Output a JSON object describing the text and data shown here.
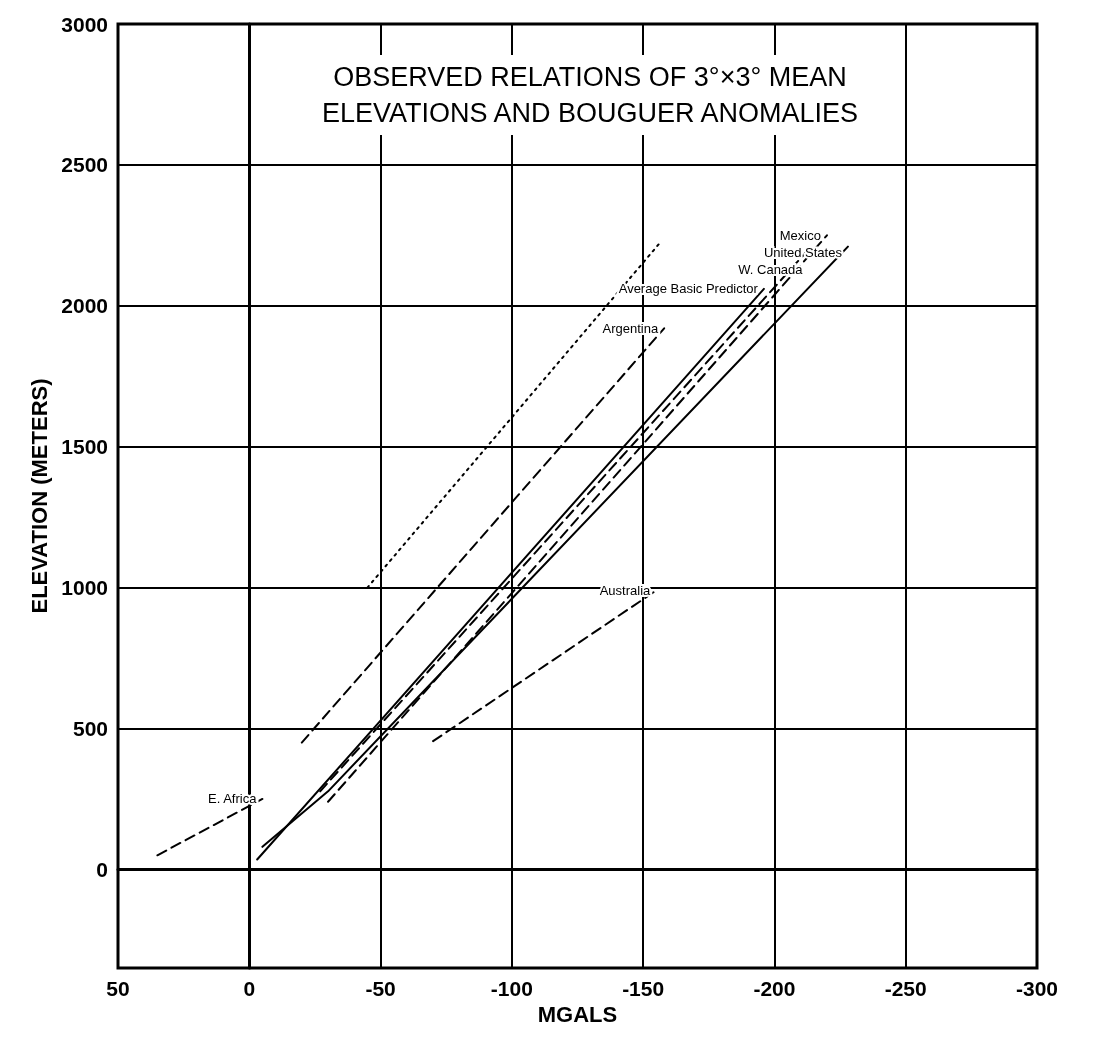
{
  "chart_data": {
    "type": "line",
    "title": "OBSERVED RELATIONS OF 3°×3° MEAN ELEVATIONS AND BOUGUER ANOMALIES",
    "xlabel": "MGALS",
    "ylabel": "ELEVATION (METERS)",
    "xlim": [
      50,
      -300
    ],
    "xticks": [
      50,
      0,
      -50,
      -100,
      -150,
      -200,
      -250,
      -300
    ],
    "ylim": [
      -350,
      3000
    ],
    "yticks": [
      0,
      500,
      1000,
      1500,
      2000,
      2500,
      3000
    ],
    "grid": true,
    "legend": false,
    "marker": "none",
    "series": [
      {
        "name": "Average Basic Predictor",
        "color": "#000000",
        "line_style": "solid",
        "x": [
          -3,
          -196
        ],
        "values": [
          35,
          2060
        ]
      },
      {
        "name": "W. Canada",
        "color": "#000000",
        "line_style": "dashed",
        "x": [
          -27,
          -213
        ],
        "values": [
          277,
          2200
        ]
      },
      {
        "name": "Mexico",
        "color": "#000000",
        "line_style": "dashed",
        "x": [
          -30,
          -220
        ],
        "values": [
          240,
          2250
        ]
      },
      {
        "name": "United States",
        "color": "#000000",
        "line_style": "solid",
        "x": [
          -5,
          -30,
          -228
        ],
        "values": [
          80,
          277,
          2210
        ]
      },
      {
        "name": "Argentina",
        "color": "#000000",
        "line_style": "dashed",
        "x": [
          -20,
          -158
        ],
        "values": [
          450,
          1920
        ]
      },
      {
        "color": "#000000",
        "line_style": "dotted",
        "x": [
          -45,
          -157
        ],
        "values": [
          1000,
          2230
        ]
      },
      {
        "name": "E. Africa",
        "color": "#000000",
        "line_style": "dashed",
        "x": [
          35,
          -5
        ],
        "values": [
          50,
          250
        ]
      },
      {
        "name": "Australia",
        "color": "#000000",
        "line_style": "dashed",
        "x": [
          -70,
          -155
        ],
        "values": [
          455,
          990
        ]
      }
    ]
  }
}
